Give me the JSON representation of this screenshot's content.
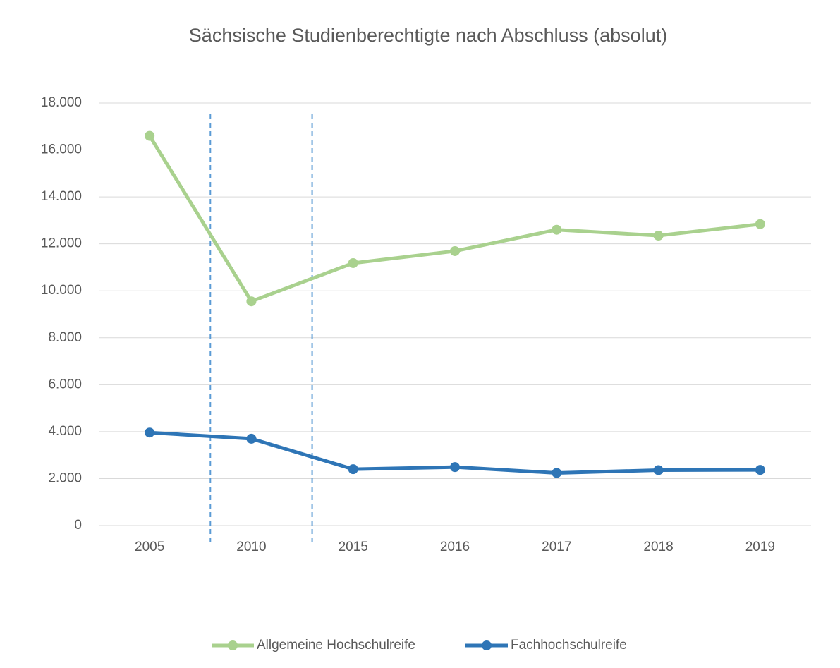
{
  "chart_data": {
    "type": "line",
    "title": "Sächsische Studienberechtigte nach Abschluss (absolut)",
    "categories": [
      "2005",
      "2010",
      "2015",
      "2016",
      "2017",
      "2018",
      "2019"
    ],
    "series": [
      {
        "name": "Allgemeine Hochschulreife",
        "color": "#a9d18e",
        "values": [
          16600,
          9550,
          11180,
          11690,
          12600,
          12350,
          12840
        ]
      },
      {
        "name": "Fachhochschulreife",
        "color": "#2e75b6",
        "values": [
          3960,
          3700,
          2400,
          2490,
          2240,
          2360,
          2370
        ]
      }
    ],
    "ylim": [
      0,
      18000
    ],
    "yticks": [
      0,
      {
        "value": 2000,
        "label": "2.000"
      },
      {
        "value": 4000,
        "label": "4.000"
      },
      {
        "value": 6000,
        "label": "6.000"
      },
      {
        "value": 8000,
        "label": "8.000"
      },
      {
        "value": 10000,
        "label": "10.000"
      },
      {
        "value": 12000,
        "label": "12.000"
      },
      {
        "value": 14000,
        "label": "14.000"
      },
      {
        "value": 16000,
        "label": "16.000"
      },
      {
        "value": 18000,
        "label": "18.000"
      }
    ],
    "grid": true,
    "legend": "bottom"
  }
}
